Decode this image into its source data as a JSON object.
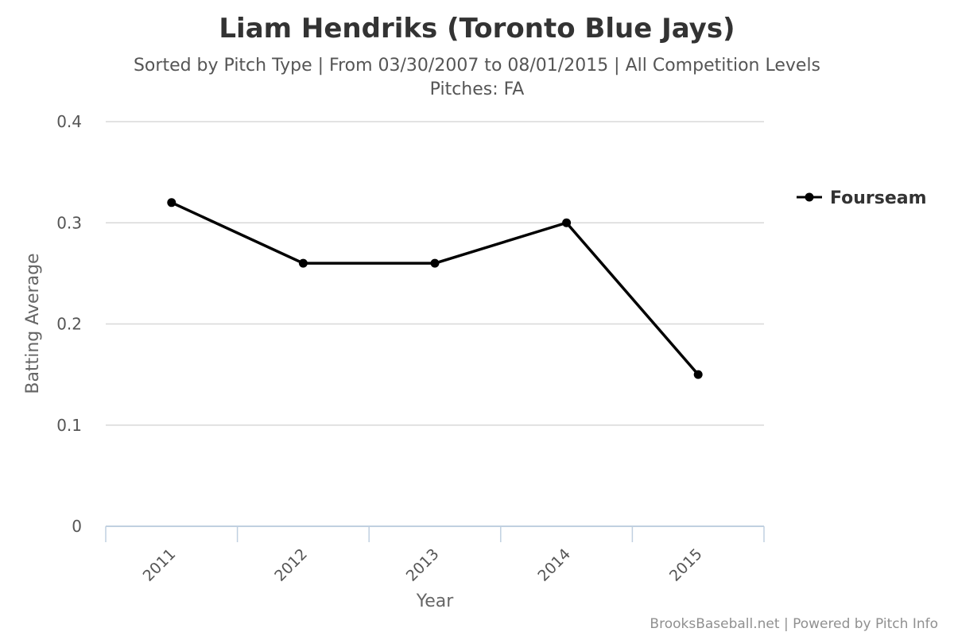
{
  "chart_data": {
    "type": "line",
    "title": "Liam Hendriks (Toronto Blue Jays)",
    "subtitle_line1": "Sorted by Pitch Type | From 03/30/2007 to 08/01/2015 | All Competition Levels",
    "subtitle_line2": "Pitches: FA",
    "xlabel": "Year",
    "ylabel": "Batting Average",
    "categories": [
      "2011",
      "2012",
      "2013",
      "2014",
      "2015"
    ],
    "y_ticks": [
      "0",
      "0.1",
      "0.2",
      "0.3",
      "0.4"
    ],
    "ylim": [
      0,
      0.4
    ],
    "grid": true,
    "legend_position": "right",
    "series": [
      {
        "name": "Fourseam",
        "values": [
          0.32,
          0.26,
          0.26,
          0.3,
          0.15
        ],
        "color": "#000000"
      }
    ],
    "credits": "BrooksBaseball.net | Powered by Pitch Info"
  }
}
